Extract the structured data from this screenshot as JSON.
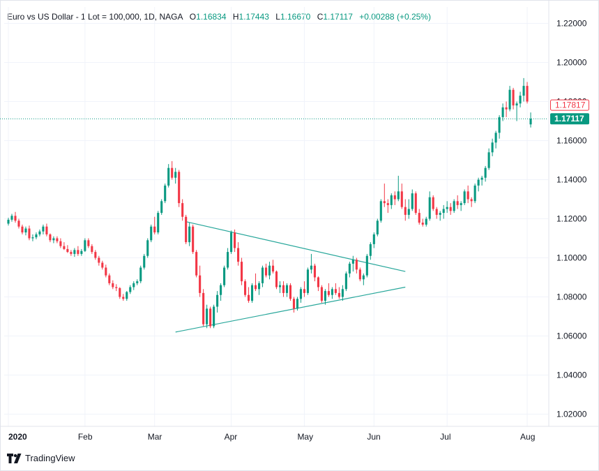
{
  "legend": {
    "title": "Euro vs US Dollar - 1 Lot = 100,000, 1D, NAGA",
    "o_label": "O",
    "o_value": "1.16834",
    "h_label": "H",
    "h_value": "1.17443",
    "l_label": "L",
    "l_value": "1.16670",
    "c_label": "C",
    "c_value": "1.17117",
    "change": "+0.00288 (+0.25%)"
  },
  "price_tags": [
    {
      "value": 1.17817,
      "label": "1.17817",
      "color": "#f23645",
      "style": "outline"
    },
    {
      "value": 1.17117,
      "label": "1.17117",
      "color": "#089981",
      "style": "filled"
    }
  ],
  "brand": "TradingView",
  "colors": {
    "up": "#089981",
    "down": "#f23645",
    "grid": "#f0f3fa",
    "line": "#26a69a",
    "axis_text": "#131722"
  },
  "chart_data": {
    "type": "candlestick",
    "title": "Euro vs US Dollar - 1 Lot = 100,000, 1D, NAGA",
    "y_ticks": [
      "1.22000",
      "1.20000",
      "1.18000",
      "1.16000",
      "1.14000",
      "1.12000",
      "1.10000",
      "1.08000",
      "1.06000",
      "1.04000",
      "1.02000"
    ],
    "ylim": [
      1.012,
      1.23
    ],
    "x_ticks": [
      {
        "label": "2020",
        "bar": 0
      },
      {
        "label": "Feb",
        "bar": 22
      },
      {
        "label": "Mar",
        "bar": 42
      },
      {
        "label": "Apr",
        "bar": 64
      },
      {
        "label": "May",
        "bar": 85
      },
      {
        "label": "Jun",
        "bar": 105
      },
      {
        "label": "Jul",
        "bar": 126
      },
      {
        "label": "Aug",
        "bar": 149
      }
    ],
    "bar_count": 155,
    "last_price": 1.17117,
    "candles": [
      [
        1.1175,
        1.1205,
        1.1165,
        1.1195
      ],
      [
        1.1195,
        1.1225,
        1.1185,
        1.1215
      ],
      [
        1.1215,
        1.1235,
        1.118,
        1.119
      ],
      [
        1.119,
        1.12,
        1.115,
        1.116
      ],
      [
        1.116,
        1.117,
        1.112,
        1.113
      ],
      [
        1.113,
        1.116,
        1.1115,
        1.115
      ],
      [
        1.115,
        1.1165,
        1.109,
        1.11
      ],
      [
        1.11,
        1.112,
        1.1085,
        1.1105
      ],
      [
        1.1105,
        1.113,
        1.1095,
        1.112
      ],
      [
        1.112,
        1.1145,
        1.111,
        1.1135
      ],
      [
        1.1135,
        1.117,
        1.112,
        1.116
      ],
      [
        1.116,
        1.1175,
        1.111,
        1.112
      ],
      [
        1.112,
        1.1125,
        1.108,
        1.109
      ],
      [
        1.109,
        1.111,
        1.1075,
        1.11
      ],
      [
        1.11,
        1.111,
        1.1075,
        1.1085
      ],
      [
        1.1085,
        1.11,
        1.105,
        1.106
      ],
      [
        1.106,
        1.108,
        1.104,
        1.1045
      ],
      [
        1.1045,
        1.1065,
        1.1025,
        1.103
      ],
      [
        1.103,
        1.104,
        1.101,
        1.102
      ],
      [
        1.102,
        1.105,
        1.1005,
        1.104
      ],
      [
        1.104,
        1.106,
        1.101,
        1.102
      ],
      [
        1.102,
        1.1045,
        1.101,
        1.1035
      ],
      [
        1.1035,
        1.11,
        1.103,
        1.109
      ],
      [
        1.109,
        1.11,
        1.105,
        1.106
      ],
      [
        1.106,
        1.107,
        1.102,
        1.103
      ],
      [
        1.103,
        1.104,
        1.099,
        1.1
      ],
      [
        1.1,
        1.101,
        1.096,
        1.0975
      ],
      [
        1.0975,
        1.0985,
        1.094,
        1.095
      ],
      [
        1.095,
        1.0965,
        1.09,
        1.091
      ],
      [
        1.091,
        1.092,
        1.086,
        1.087
      ],
      [
        1.087,
        1.0885,
        1.084,
        1.085
      ],
      [
        1.085,
        1.0865,
        1.083,
        1.0845
      ],
      [
        1.0845,
        1.085,
        1.079,
        1.08
      ],
      [
        1.08,
        1.0815,
        1.078,
        1.079
      ],
      [
        1.079,
        1.083,
        1.078,
        1.0825
      ],
      [
        1.0825,
        1.086,
        1.0815,
        1.085
      ],
      [
        1.085,
        1.088,
        1.0835,
        1.087
      ],
      [
        1.087,
        1.089,
        1.086,
        1.088
      ],
      [
        1.088,
        1.096,
        1.087,
        1.095
      ],
      [
        1.095,
        1.102,
        1.094,
        1.101
      ],
      [
        1.101,
        1.11,
        1.1,
        1.109
      ],
      [
        1.109,
        1.117,
        1.108,
        1.116
      ],
      [
        1.116,
        1.121,
        1.112,
        1.113
      ],
      [
        1.113,
        1.124,
        1.112,
        1.123
      ],
      [
        1.123,
        1.13,
        1.122,
        1.129
      ],
      [
        1.129,
        1.138,
        1.128,
        1.137
      ],
      [
        1.137,
        1.148,
        1.136,
        1.146
      ],
      [
        1.146,
        1.1495,
        1.14,
        1.141
      ],
      [
        1.141,
        1.146,
        1.138,
        1.144
      ],
      [
        1.144,
        1.145,
        1.126,
        1.128
      ],
      [
        1.128,
        1.13,
        1.119,
        1.121
      ],
      [
        1.121,
        1.122,
        1.107,
        1.108
      ],
      [
        1.108,
        1.118,
        1.106,
        1.116
      ],
      [
        1.116,
        1.117,
        1.102,
        1.103
      ],
      [
        1.103,
        1.104,
        1.09,
        1.091
      ],
      [
        1.091,
        1.096,
        1.08,
        1.082
      ],
      [
        1.082,
        1.084,
        1.065,
        1.066
      ],
      [
        1.066,
        1.076,
        1.064,
        1.074
      ],
      [
        1.074,
        1.075,
        1.064,
        1.065
      ],
      [
        1.065,
        1.076,
        1.064,
        1.075
      ],
      [
        1.075,
        1.083,
        1.072,
        1.081
      ],
      [
        1.081,
        1.087,
        1.078,
        1.086
      ],
      [
        1.086,
        1.096,
        1.085,
        1.095
      ],
      [
        1.095,
        1.105,
        1.094,
        1.103
      ],
      [
        1.103,
        1.114,
        1.102,
        1.113
      ],
      [
        1.113,
        1.1145,
        1.103,
        1.105
      ],
      [
        1.105,
        1.108,
        1.096,
        1.098
      ],
      [
        1.098,
        1.1,
        1.086,
        1.088
      ],
      [
        1.088,
        1.089,
        1.08,
        1.081
      ],
      [
        1.081,
        1.085,
        1.077,
        1.078
      ],
      [
        1.078,
        1.087,
        1.077,
        1.086
      ],
      [
        1.086,
        1.092,
        1.083,
        1.084
      ],
      [
        1.084,
        1.088,
        1.081,
        1.087
      ],
      [
        1.087,
        1.096,
        1.085,
        1.095
      ],
      [
        1.095,
        1.097,
        1.09,
        1.091
      ],
      [
        1.091,
        1.098,
        1.089,
        1.096
      ],
      [
        1.096,
        1.099,
        1.092,
        1.093
      ],
      [
        1.093,
        1.0935,
        1.084,
        1.085
      ],
      [
        1.085,
        1.088,
        1.082,
        1.086
      ],
      [
        1.086,
        1.088,
        1.08,
        1.082
      ],
      [
        1.082,
        1.087,
        1.08,
        1.086
      ],
      [
        1.086,
        1.087,
        1.078,
        1.079
      ],
      [
        1.079,
        1.08,
        1.072,
        1.074
      ],
      [
        1.074,
        1.08,
        1.073,
        1.079
      ],
      [
        1.079,
        1.085,
        1.077,
        1.084
      ],
      [
        1.084,
        1.088,
        1.08,
        1.082
      ],
      [
        1.082,
        1.095,
        1.081,
        1.094
      ],
      [
        1.094,
        1.102,
        1.092,
        1.096
      ],
      [
        1.096,
        1.097,
        1.088,
        1.09
      ],
      [
        1.09,
        1.0905,
        1.083,
        1.085
      ],
      [
        1.085,
        1.086,
        1.077,
        1.078
      ],
      [
        1.078,
        1.084,
        1.076,
        1.083
      ],
      [
        1.083,
        1.087,
        1.08,
        1.081
      ],
      [
        1.081,
        1.085,
        1.079,
        1.084
      ],
      [
        1.084,
        1.087,
        1.081,
        1.082
      ],
      [
        1.082,
        1.085,
        1.079,
        1.08
      ],
      [
        1.08,
        1.086,
        1.078,
        1.084
      ],
      [
        1.084,
        1.093,
        1.083,
        1.092
      ],
      [
        1.092,
        1.098,
        1.09,
        1.097
      ],
      [
        1.097,
        1.101,
        1.093,
        1.099
      ],
      [
        1.099,
        1.1,
        1.092,
        1.094
      ],
      [
        1.094,
        1.095,
        1.088,
        1.089
      ],
      [
        1.089,
        1.092,
        1.086,
        1.091
      ],
      [
        1.091,
        1.102,
        1.09,
        1.101
      ],
      [
        1.101,
        1.108,
        1.099,
        1.107
      ],
      [
        1.107,
        1.113,
        1.105,
        1.112
      ],
      [
        1.112,
        1.12,
        1.111,
        1.119
      ],
      [
        1.119,
        1.13,
        1.118,
        1.129
      ],
      [
        1.129,
        1.138,
        1.126,
        1.128
      ],
      [
        1.128,
        1.13,
        1.123,
        1.127
      ],
      [
        1.127,
        1.133,
        1.125,
        1.132
      ],
      [
        1.132,
        1.134,
        1.127,
        1.13
      ],
      [
        1.13,
        1.142,
        1.129,
        1.134
      ],
      [
        1.134,
        1.138,
        1.125,
        1.126
      ],
      [
        1.126,
        1.13,
        1.119,
        1.122
      ],
      [
        1.122,
        1.13,
        1.12,
        1.125
      ],
      [
        1.125,
        1.135,
        1.124,
        1.133
      ],
      [
        1.133,
        1.134,
        1.122,
        1.123
      ],
      [
        1.123,
        1.125,
        1.117,
        1.118
      ],
      [
        1.118,
        1.12,
        1.116,
        1.117
      ],
      [
        1.117,
        1.121,
        1.116,
        1.12
      ],
      [
        1.12,
        1.134,
        1.119,
        1.131
      ],
      [
        1.131,
        1.132,
        1.124,
        1.125
      ],
      [
        1.125,
        1.126,
        1.12,
        1.122
      ],
      [
        1.122,
        1.124,
        1.119,
        1.123
      ],
      [
        1.123,
        1.127,
        1.12,
        1.125
      ],
      [
        1.125,
        1.129,
        1.123,
        1.126
      ],
      [
        1.126,
        1.128,
        1.122,
        1.124
      ],
      [
        1.124,
        1.13,
        1.123,
        1.129
      ],
      [
        1.129,
        1.132,
        1.125,
        1.127
      ],
      [
        1.127,
        1.129,
        1.124,
        1.128
      ],
      [
        1.128,
        1.135,
        1.127,
        1.134
      ],
      [
        1.134,
        1.137,
        1.128,
        1.13
      ],
      [
        1.13,
        1.131,
        1.126,
        1.129
      ],
      [
        1.129,
        1.138,
        1.128,
        1.137
      ],
      [
        1.137,
        1.141,
        1.134,
        1.14
      ],
      [
        1.14,
        1.142,
        1.137,
        1.141
      ],
      [
        1.141,
        1.147,
        1.139,
        1.146
      ],
      [
        1.146,
        1.156,
        1.145,
        1.154
      ],
      [
        1.154,
        1.161,
        1.152,
        1.159
      ],
      [
        1.159,
        1.165,
        1.156,
        1.164
      ],
      [
        1.164,
        1.173,
        1.161,
        1.172
      ],
      [
        1.172,
        1.179,
        1.17,
        1.177
      ],
      [
        1.177,
        1.18,
        1.172,
        1.176
      ],
      [
        1.176,
        1.188,
        1.175,
        1.186
      ],
      [
        1.186,
        1.187,
        1.176,
        1.178
      ],
      [
        1.178,
        1.18,
        1.17,
        1.179
      ],
      [
        1.179,
        1.185,
        1.177,
        1.183
      ],
      [
        1.183,
        1.192,
        1.18,
        1.188
      ],
      [
        1.188,
        1.19,
        1.179,
        1.18
      ],
      [
        1.1683,
        1.1744,
        1.1667,
        1.1712
      ]
    ],
    "annotations": [
      {
        "type": "trendline",
        "label": "upper",
        "from": {
          "bar": 51,
          "price": 1.1185
        },
        "to": {
          "bar": 114,
          "price": 1.093
        }
      },
      {
        "type": "trendline",
        "label": "lower",
        "from": {
          "bar": 48,
          "price": 1.062
        },
        "to": {
          "bar": 114,
          "price": 1.085
        }
      }
    ]
  }
}
